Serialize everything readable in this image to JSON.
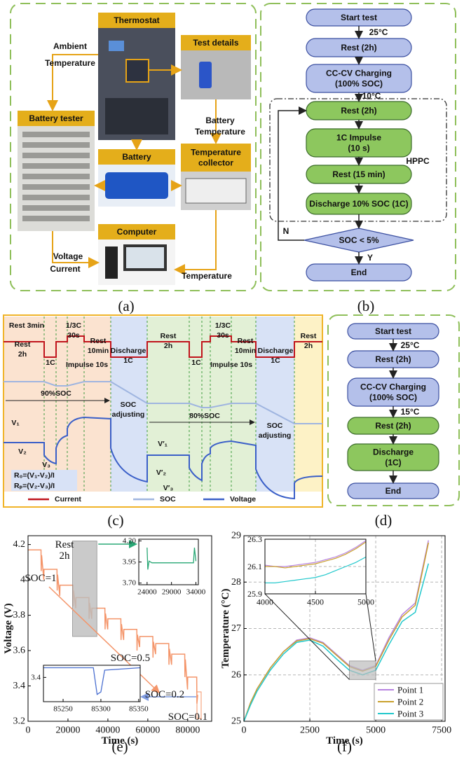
{
  "panel_a": {
    "caption": "(a)",
    "boxes": [
      "Thermostat",
      "Test details",
      "Battery tester",
      "Battery",
      [
        "Temperature",
        "collector"
      ],
      "Computer"
    ],
    "edge_labels": [
      [
        "Ambient",
        "Temperature"
      ],
      [
        "Battery",
        "Temperature"
      ],
      "Voltage",
      "Current",
      "Temperature"
    ]
  },
  "panel_b": {
    "caption": "(b)",
    "nodes": [
      "Start test",
      "Rest (2h)",
      [
        "CC-CV Charging",
        "(100% SOC)"
      ],
      "Rest (2h)",
      [
        "1C Impulse",
        "(10 s)"
      ],
      "Rest (15 min)",
      "Discharge 10% SOC (1C)",
      "SOC < 5%",
      "End"
    ],
    "temps": [
      "25°C",
      "10°C"
    ],
    "group_label": "HPPC",
    "branch_no": "N",
    "branch_yes": "Y"
  },
  "panel_c": {
    "caption": "(c)",
    "labels": [
      "Rest 3min",
      [
        "Rest",
        "2h"
      ],
      [
        "1/3C",
        "30s"
      ],
      [
        "Rest",
        "10min"
      ],
      "1C",
      "Impulse 10s",
      [
        "Discharge",
        "1C"
      ],
      [
        "Rest",
        "2h"
      ],
      "1C",
      [
        "1/3C",
        "30s"
      ],
      [
        "Rest",
        "10min"
      ],
      "Impulse 10s",
      [
        "Discharge",
        "1C"
      ],
      [
        "Rest",
        "2h"
      ],
      "90%SOC",
      [
        "SOC",
        "adjusting"
      ],
      "80%SOC",
      [
        "SOC",
        "adjusting"
      ],
      "V₁",
      "V₂",
      "V₃",
      "V′₁",
      "V′₂",
      "V′₃",
      "R₀=(V₁-V₂)/I",
      "Rₚ=(V₂-V₃)/I"
    ],
    "legend": [
      "Current",
      "SOC",
      "Voltage"
    ]
  },
  "panel_d": {
    "caption": "(d)",
    "nodes": [
      "Start test",
      "Rest (2h)",
      [
        "CC-CV Charging",
        "(100% SOC)"
      ],
      "Rest (2h)",
      [
        "Discharge",
        "(1C)"
      ],
      "End"
    ],
    "temps": [
      "25°C",
      "15°C"
    ]
  },
  "chart_data": [
    {
      "type": "line",
      "caption": "(e)",
      "xlabel": "Time (s)",
      "ylabel": "Voltage (V)",
      "xlim": [
        0,
        92000
      ],
      "ylim": [
        3.2,
        4.25
      ],
      "xticks": [
        0,
        20000,
        40000,
        60000,
        80000
      ],
      "yticks": [
        3.2,
        3.4,
        3.6,
        3.8,
        4.0,
        4.2
      ],
      "grid": false,
      "x": [
        0,
        6500,
        6600,
        6800,
        7900,
        8000,
        14500,
        14600,
        14800,
        15900,
        16000,
        22500,
        22600,
        22800,
        23900,
        24000,
        30500,
        30600,
        30800,
        31900,
        32000,
        38500,
        38600,
        38800,
        39900,
        40000,
        46500,
        46600,
        46800,
        47900,
        48000,
        54500,
        54600,
        54800,
        55900,
        56000,
        62500,
        62600,
        62800,
        63900,
        64000,
        70500,
        70600,
        70800,
        71900,
        72000,
        78500,
        78600,
        78800,
        79900,
        80000,
        84500,
        84600,
        85000
      ],
      "series": [
        {
          "color": "#f4956a",
          "values": [
            4.17,
            4.17,
            4.05,
            4.14,
            4.0,
            4.06,
            4.06,
            3.94,
            4.03,
            3.91,
            3.97,
            3.97,
            3.85,
            3.94,
            3.84,
            3.9,
            3.9,
            3.78,
            3.87,
            3.78,
            3.84,
            3.84,
            3.72,
            3.81,
            3.72,
            3.78,
            3.78,
            3.66,
            3.75,
            3.66,
            3.72,
            3.72,
            3.6,
            3.69,
            3.62,
            3.68,
            3.68,
            3.56,
            3.65,
            3.58,
            3.64,
            3.64,
            3.52,
            3.61,
            3.52,
            3.58,
            3.58,
            3.45,
            3.55,
            3.38,
            3.45,
            3.45,
            3.3,
            3.35
          ]
        }
      ],
      "annotations": [
        [
          "Rest",
          "2h"
        ],
        "SOC=1",
        "SOC=0.5",
        "SOC=0.2",
        "SOC=0.1"
      ],
      "insets": [
        {
          "xlim": [
            22300,
            34500
          ],
          "ylim": [
            3.68,
            4.22
          ],
          "xticks": [
            24000,
            29000,
            34000
          ],
          "yticks": [
            {
              "value": 3.7,
              "label": "3.70"
            },
            {
              "value": 3.95,
              "label": "3.95"
            },
            {
              "value": 4.2,
              "label": "4.20"
            }
          ],
          "grid": false,
          "x": [
            24000,
            24150,
            24400,
            25000,
            33500,
            33700,
            34000
          ],
          "series": [
            {
              "color": "#2aa876",
              "values": [
                4.12,
                3.86,
                3.96,
                3.94,
                3.94,
                4.12,
                3.96
              ]
            }
          ]
        },
        {
          "xlim": [
            85224,
            85352
          ],
          "ylim": [
            3.3,
            3.45
          ],
          "xticks": [
            85250,
            85300,
            85350
          ],
          "yticks": [
            3.4
          ],
          "grid": false,
          "x": [
            85224,
            85290,
            85295,
            85300,
            85305,
            85352
          ],
          "series": [
            {
              "color": "#4a6fd0",
              "values": [
                3.44,
                3.44,
                3.33,
                3.34,
                3.43,
                3.44
              ]
            }
          ]
        }
      ]
    },
    {
      "type": "line",
      "caption": "(f)",
      "xlabel": "Time (s)",
      "ylabel": "Temperature (°C)",
      "xlim": [
        0,
        7630
      ],
      "ylim": [
        25,
        29
      ],
      "xticks": [
        0,
        2500,
        5000,
        7500
      ],
      "yticks": [
        25,
        26,
        27,
        28,
        29
      ],
      "grid": true,
      "legend": "lower right",
      "x": [
        0,
        250,
        500,
        1000,
        1500,
        2000,
        2500,
        3000,
        3500,
        4000,
        4500,
        5000,
        5500,
        6000,
        6500,
        7000
      ],
      "series": [
        {
          "name": "Point 1",
          "color": "#b884e0",
          "values": [
            25,
            25.4,
            25.7,
            26.15,
            26.5,
            26.75,
            26.8,
            26.7,
            26.45,
            26.2,
            26.1,
            26.2,
            26.8,
            27.3,
            27.55,
            28.9
          ]
        },
        {
          "name": "Point 2",
          "color": "#c9a02c",
          "values": [
            25,
            25.4,
            25.7,
            26.15,
            26.5,
            26.73,
            26.78,
            26.68,
            26.43,
            26.18,
            26.08,
            26.18,
            26.75,
            27.25,
            27.5,
            28.85
          ]
        },
        {
          "name": "Point 3",
          "color": "#22c8cc",
          "values": [
            25,
            25.35,
            25.65,
            26.1,
            26.45,
            26.7,
            26.75,
            26.62,
            26.35,
            26.1,
            26.0,
            26.1,
            26.65,
            27.15,
            27.35,
            28.4
          ]
        }
      ],
      "insets": [
        {
          "xlim": [
            4000,
            5000
          ],
          "ylim": [
            25.9,
            26.3
          ],
          "xticks": [
            4000,
            4500,
            5000
          ],
          "yticks": [
            25.9,
            26.1,
            26.3
          ],
          "grid": true,
          "x": [
            4000,
            4100,
            4200,
            4300,
            4400,
            4500,
            4600,
            4700,
            4800,
            4900,
            5000
          ],
          "series": [
            {
              "color": "#b884e0",
              "values": [
                26.11,
                26.1,
                26.1,
                26.11,
                26.12,
                26.13,
                26.15,
                26.17,
                26.2,
                26.24,
                26.29
              ]
            },
            {
              "color": "#c9a02c",
              "values": [
                26.1,
                26.1,
                26.09,
                26.1,
                26.11,
                26.12,
                26.14,
                26.16,
                26.19,
                26.23,
                26.28
              ]
            },
            {
              "color": "#22c8cc",
              "values": [
                25.98,
                25.98,
                25.99,
                26.0,
                26.01,
                26.02,
                26.04,
                26.07,
                26.1,
                26.13,
                26.17
              ]
            }
          ]
        }
      ]
    }
  ]
}
